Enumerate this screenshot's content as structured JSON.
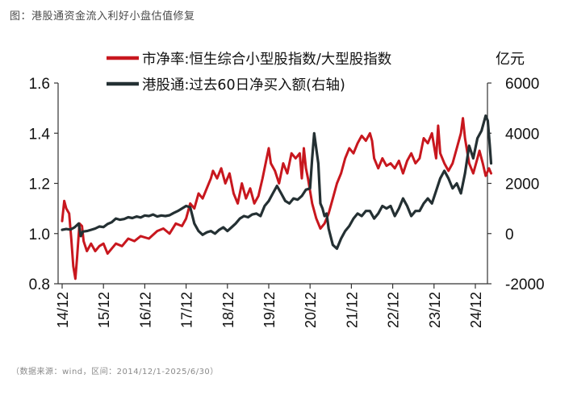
{
  "figure": {
    "title": "图：港股通资金流入利好小盘估值修复",
    "source": "（数据来源：wind，区间：2014/12/1-2025/6/30）"
  },
  "colors": {
    "red": "#C8171E",
    "black": "#243033",
    "axis": "#333333"
  },
  "chart_data": {
    "type": "line",
    "x_labels": [
      "14/12",
      "15/12",
      "16/12",
      "17/12",
      "18/12",
      "19/12",
      "20/12",
      "21/12",
      "22/12",
      "23/12",
      "24/12"
    ],
    "legend": [
      "市净率:恒生综合小型股指数/大型股指数",
      "港股通:过去60日净买入额(右轴)"
    ],
    "left_axis": {
      "ylim": [
        0.8,
        1.6
      ],
      "ticks": [
        "0.8",
        "1.0",
        "1.2",
        "1.4",
        "1.6"
      ]
    },
    "right_axis": {
      "unit": "亿元",
      "ylim": [
        -2000,
        6000
      ],
      "ticks": [
        "-2000",
        "0",
        "2000",
        "4000",
        "6000"
      ]
    },
    "series": [
      {
        "name": "市净率:恒生综合小型股指数/大型股指数",
        "axis": "left",
        "color": "#C8171E",
        "points": [
          [
            0.0,
            1.05
          ],
          [
            0.05,
            1.13
          ],
          [
            0.1,
            1.1
          ],
          [
            0.17,
            1.08
          ],
          [
            0.22,
            0.98
          ],
          [
            0.27,
            0.87
          ],
          [
            0.32,
            0.82
          ],
          [
            0.36,
            0.9
          ],
          [
            0.42,
            1.04
          ],
          [
            0.48,
            1.03
          ],
          [
            0.52,
            0.97
          ],
          [
            0.6,
            0.93
          ],
          [
            0.7,
            0.96
          ],
          [
            0.8,
            0.93
          ],
          [
            0.9,
            0.95
          ],
          [
            1.0,
            0.96
          ],
          [
            1.1,
            0.92
          ],
          [
            1.2,
            0.94
          ],
          [
            1.3,
            0.96
          ],
          [
            1.45,
            0.95
          ],
          [
            1.6,
            0.98
          ],
          [
            1.75,
            0.97
          ],
          [
            1.9,
            0.99
          ],
          [
            2.1,
            0.98
          ],
          [
            2.3,
            1.01
          ],
          [
            2.45,
            1.02
          ],
          [
            2.6,
            1.0
          ],
          [
            2.75,
            1.04
          ],
          [
            2.9,
            1.03
          ],
          [
            3.0,
            1.06
          ],
          [
            3.1,
            1.12
          ],
          [
            3.2,
            1.1
          ],
          [
            3.3,
            1.16
          ],
          [
            3.4,
            1.14
          ],
          [
            3.5,
            1.18
          ],
          [
            3.6,
            1.22
          ],
          [
            3.65,
            1.25
          ],
          [
            3.75,
            1.22
          ],
          [
            3.85,
            1.26
          ],
          [
            3.95,
            1.2
          ],
          [
            4.05,
            1.24
          ],
          [
            4.15,
            1.16
          ],
          [
            4.25,
            1.12
          ],
          [
            4.35,
            1.2
          ],
          [
            4.45,
            1.14
          ],
          [
            4.55,
            1.18
          ],
          [
            4.65,
            1.12
          ],
          [
            4.75,
            1.15
          ],
          [
            4.85,
            1.22
          ],
          [
            4.95,
            1.3
          ],
          [
            5.0,
            1.34
          ],
          [
            5.05,
            1.28
          ],
          [
            5.15,
            1.25
          ],
          [
            5.25,
            1.2
          ],
          [
            5.35,
            1.28
          ],
          [
            5.45,
            1.24
          ],
          [
            5.55,
            1.32
          ],
          [
            5.65,
            1.3
          ],
          [
            5.75,
            1.32
          ],
          [
            5.8,
            1.22
          ],
          [
            5.85,
            1.34
          ],
          [
            5.9,
            1.26
          ],
          [
            5.95,
            1.22
          ],
          [
            6.05,
            1.12
          ],
          [
            6.15,
            1.06
          ],
          [
            6.25,
            1.02
          ],
          [
            6.35,
            1.04
          ],
          [
            6.45,
            1.08
          ],
          [
            6.55,
            1.14
          ],
          [
            6.65,
            1.2
          ],
          [
            6.75,
            1.24
          ],
          [
            6.85,
            1.3
          ],
          [
            6.95,
            1.34
          ],
          [
            7.05,
            1.32
          ],
          [
            7.15,
            1.36
          ],
          [
            7.25,
            1.39
          ],
          [
            7.35,
            1.37
          ],
          [
            7.45,
            1.4
          ],
          [
            7.5,
            1.37
          ],
          [
            7.55,
            1.3
          ],
          [
            7.65,
            1.26
          ],
          [
            7.75,
            1.3
          ],
          [
            7.85,
            1.27
          ],
          [
            7.95,
            1.28
          ],
          [
            8.05,
            1.26
          ],
          [
            8.15,
            1.29
          ],
          [
            8.25,
            1.24
          ],
          [
            8.35,
            1.29
          ],
          [
            8.45,
            1.32
          ],
          [
            8.55,
            1.28
          ],
          [
            8.65,
            1.3
          ],
          [
            8.75,
            1.38
          ],
          [
            8.85,
            1.36
          ],
          [
            8.95,
            1.4
          ],
          [
            9.05,
            1.3
          ],
          [
            9.1,
            1.43
          ],
          [
            9.15,
            1.32
          ],
          [
            9.25,
            1.28
          ],
          [
            9.35,
            1.25
          ],
          [
            9.45,
            1.28
          ],
          [
            9.55,
            1.34
          ],
          [
            9.65,
            1.4
          ],
          [
            9.7,
            1.46
          ],
          [
            9.75,
            1.38
          ],
          [
            9.85,
            1.28
          ],
          [
            9.95,
            1.24
          ],
          [
            10.05,
            1.3
          ],
          [
            10.1,
            1.33
          ],
          [
            10.18,
            1.28
          ],
          [
            10.25,
            1.23
          ],
          [
            10.33,
            1.26
          ],
          [
            10.38,
            1.24
          ]
        ]
      },
      {
        "name": "港股通:过去60日净买入额(右轴)",
        "axis": "right",
        "color": "#243033",
        "points": [
          [
            0.0,
            150
          ],
          [
            0.1,
            180
          ],
          [
            0.2,
            160
          ],
          [
            0.3,
            250
          ],
          [
            0.4,
            400
          ],
          [
            0.45,
            -100
          ],
          [
            0.5,
            80
          ],
          [
            0.6,
            100
          ],
          [
            0.7,
            150
          ],
          [
            0.8,
            200
          ],
          [
            0.9,
            280
          ],
          [
            1.0,
            260
          ],
          [
            1.1,
            380
          ],
          [
            1.2,
            450
          ],
          [
            1.3,
            600
          ],
          [
            1.4,
            550
          ],
          [
            1.5,
            580
          ],
          [
            1.6,
            650
          ],
          [
            1.7,
            620
          ],
          [
            1.8,
            680
          ],
          [
            1.9,
            640
          ],
          [
            2.0,
            720
          ],
          [
            2.1,
            700
          ],
          [
            2.2,
            760
          ],
          [
            2.3,
            680
          ],
          [
            2.4,
            720
          ],
          [
            2.5,
            700
          ],
          [
            2.6,
            730
          ],
          [
            2.7,
            820
          ],
          [
            2.8,
            900
          ],
          [
            2.9,
            1000
          ],
          [
            3.0,
            1100
          ],
          [
            3.1,
            1050
          ],
          [
            3.15,
            720
          ],
          [
            3.2,
            400
          ],
          [
            3.3,
            100
          ],
          [
            3.4,
            -50
          ],
          [
            3.5,
            50
          ],
          [
            3.6,
            100
          ],
          [
            3.7,
            0
          ],
          [
            3.8,
            150
          ],
          [
            3.9,
            250
          ],
          [
            4.0,
            100
          ],
          [
            4.1,
            250
          ],
          [
            4.2,
            400
          ],
          [
            4.3,
            600
          ],
          [
            4.4,
            700
          ],
          [
            4.5,
            650
          ],
          [
            4.6,
            760
          ],
          [
            4.7,
            800
          ],
          [
            4.8,
            700
          ],
          [
            4.9,
            1100
          ],
          [
            5.0,
            1300
          ],
          [
            5.1,
            1600
          ],
          [
            5.2,
            1900
          ],
          [
            5.3,
            1600
          ],
          [
            5.4,
            1300
          ],
          [
            5.5,
            1200
          ],
          [
            5.6,
            1400
          ],
          [
            5.7,
            1350
          ],
          [
            5.8,
            1500
          ],
          [
            5.9,
            1750
          ],
          [
            6.0,
            1800
          ],
          [
            6.05,
            3000
          ],
          [
            6.1,
            4000
          ],
          [
            6.2,
            2800
          ],
          [
            6.25,
            1200
          ],
          [
            6.3,
            1000
          ],
          [
            6.35,
            700
          ],
          [
            6.4,
            800
          ],
          [
            6.45,
            200
          ],
          [
            6.55,
            -450
          ],
          [
            6.65,
            -600
          ],
          [
            6.75,
            -200
          ],
          [
            6.85,
            100
          ],
          [
            6.95,
            300
          ],
          [
            7.05,
            600
          ],
          [
            7.15,
            800
          ],
          [
            7.25,
            700
          ],
          [
            7.35,
            900
          ],
          [
            7.45,
            900
          ],
          [
            7.55,
            600
          ],
          [
            7.65,
            800
          ],
          [
            7.75,
            1100
          ],
          [
            7.85,
            1000
          ],
          [
            7.95,
            1100
          ],
          [
            8.05,
            700
          ],
          [
            8.15,
            1000
          ],
          [
            8.25,
            1400
          ],
          [
            8.35,
            1100
          ],
          [
            8.45,
            700
          ],
          [
            8.55,
            900
          ],
          [
            8.65,
            900
          ],
          [
            8.75,
            1200
          ],
          [
            8.85,
            1400
          ],
          [
            8.95,
            1200
          ],
          [
            9.05,
            1700
          ],
          [
            9.15,
            2200
          ],
          [
            9.25,
            2500
          ],
          [
            9.35,
            2200
          ],
          [
            9.45,
            1800
          ],
          [
            9.55,
            2000
          ],
          [
            9.65,
            1600
          ],
          [
            9.75,
            2400
          ],
          [
            9.85,
            3500
          ],
          [
            9.95,
            3000
          ],
          [
            10.05,
            3800
          ],
          [
            10.15,
            4100
          ],
          [
            10.25,
            4700
          ],
          [
            10.3,
            4500
          ],
          [
            10.35,
            3500
          ],
          [
            10.38,
            2800
          ]
        ]
      }
    ]
  }
}
